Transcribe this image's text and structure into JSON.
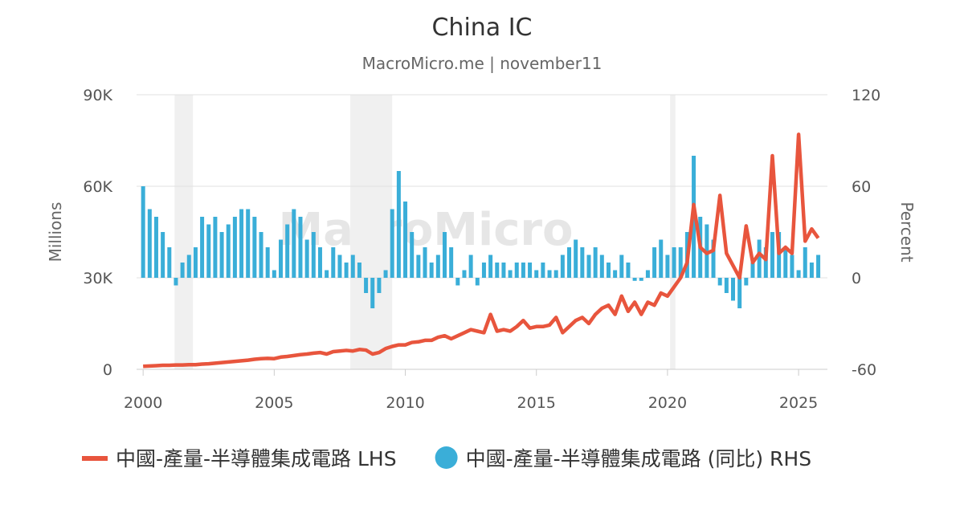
{
  "chart_data": {
    "type": "line-bar",
    "title": "China IC",
    "subtitle": "MacroMicro.me | november11",
    "watermark": "MacroMicro",
    "y_label": "Millions",
    "y2_label": "Percent",
    "xlim": [
      1999.75,
      2026.1
    ],
    "xticks": [
      2000,
      2005,
      2010,
      2015,
      2020,
      2025
    ],
    "ylim": [
      0,
      90000
    ],
    "yticks": [
      0,
      {
        "value": 30000,
        "label": "30K"
      },
      {
        "value": 60000,
        "label": "60K"
      },
      {
        "value": 90000,
        "label": "90K"
      }
    ],
    "y2lim": [
      -60,
      120
    ],
    "y2ticks": [
      -60,
      0,
      60,
      120
    ],
    "grid": true,
    "recessions": [
      [
        2001.2,
        2001.9
      ],
      [
        2007.9,
        2009.5
      ],
      [
        2020.1,
        2020.3
      ]
    ],
    "x": [
      2000,
      2000.25,
      2000.5,
      2000.75,
      2001,
      2001.25,
      2001.5,
      2001.75,
      2002,
      2002.25,
      2002.5,
      2002.75,
      2003,
      2003.25,
      2003.5,
      2003.75,
      2004,
      2004.25,
      2004.5,
      2004.75,
      2005,
      2005.25,
      2005.5,
      2005.75,
      2006,
      2006.25,
      2006.5,
      2006.75,
      2007,
      2007.25,
      2007.5,
      2007.75,
      2008,
      2008.25,
      2008.5,
      2008.75,
      2009,
      2009.25,
      2009.5,
      2009.75,
      2010,
      2010.25,
      2010.5,
      2010.75,
      2011,
      2011.25,
      2011.5,
      2011.75,
      2012,
      2012.25,
      2012.5,
      2012.75,
      2013,
      2013.25,
      2013.5,
      2013.75,
      2014,
      2014.25,
      2014.5,
      2014.75,
      2015,
      2015.25,
      2015.5,
      2015.75,
      2016,
      2016.25,
      2016.5,
      2016.75,
      2017,
      2017.25,
      2017.5,
      2017.75,
      2018,
      2018.25,
      2018.5,
      2018.75,
      2019,
      2019.25,
      2019.5,
      2019.75,
      2020,
      2020.25,
      2020.5,
      2020.75,
      2021,
      2021.25,
      2021.5,
      2021.75,
      2022,
      2022.25,
      2022.5,
      2022.75,
      2023,
      2023.25,
      2023.5,
      2023.75,
      2024,
      2024.25,
      2024.5,
      2024.75,
      2025,
      2025.25,
      2025.5,
      2025.75
    ],
    "series": [
      {
        "name": "中國-產量-半導體集成電路 LHS",
        "color": "#e8553d",
        "values": [
          1000,
          1100,
          1200,
          1300,
          1300,
          1400,
          1400,
          1500,
          1500,
          1700,
          1800,
          2000,
          2200,
          2400,
          2600,
          2800,
          3000,
          3300,
          3500,
          3600,
          3500,
          4000,
          4200,
          4500,
          4800,
          5000,
          5300,
          5500,
          5000,
          5800,
          6000,
          6200,
          6000,
          6500,
          6300,
          5000,
          5500,
          6800,
          7500,
          8000,
          8000,
          8800,
          9000,
          9500,
          9500,
          10500,
          11000,
          10000,
          11000,
          12000,
          13000,
          12500,
          12000,
          18000,
          12500,
          13000,
          12500,
          14000,
          16000,
          13500,
          14000,
          14000,
          14500,
          17000,
          12000,
          14000,
          16000,
          17000,
          15000,
          18000,
          20000,
          21000,
          18000,
          24000,
          19000,
          22000,
          18000,
          22000,
          21000,
          25000,
          24000,
          27000,
          30000,
          35000,
          54000,
          40000,
          38000,
          39000,
          57000,
          38000,
          34000,
          30000,
          47000,
          35000,
          38000,
          36000,
          70000,
          38000,
          40000,
          38000,
          77000,
          42000,
          46000,
          43000
        ]
      },
      {
        "name": "中國-產量-半導體集成電路 (同比) RHS",
        "color": "#3aaed8",
        "axis": "y2",
        "values": [
          60,
          45,
          40,
          30,
          20,
          -5,
          10,
          15,
          20,
          40,
          35,
          40,
          30,
          35,
          40,
          45,
          45,
          40,
          30,
          20,
          5,
          25,
          35,
          45,
          40,
          25,
          30,
          20,
          5,
          20,
          15,
          10,
          15,
          10,
          -10,
          -20,
          -10,
          5,
          45,
          70,
          50,
          30,
          15,
          20,
          10,
          15,
          30,
          20,
          -5,
          5,
          15,
          -5,
          10,
          15,
          10,
          10,
          5,
          10,
          10,
          10,
          5,
          10,
          5,
          5,
          15,
          20,
          25,
          20,
          15,
          20,
          15,
          10,
          5,
          15,
          10,
          -2,
          -2,
          5,
          20,
          25,
          15,
          20,
          20,
          30,
          80,
          40,
          35,
          25,
          -5,
          -10,
          -15,
          -20,
          -5,
          10,
          25,
          20,
          30,
          30,
          20,
          15,
          5,
          20,
          10,
          15
        ]
      }
    ]
  }
}
